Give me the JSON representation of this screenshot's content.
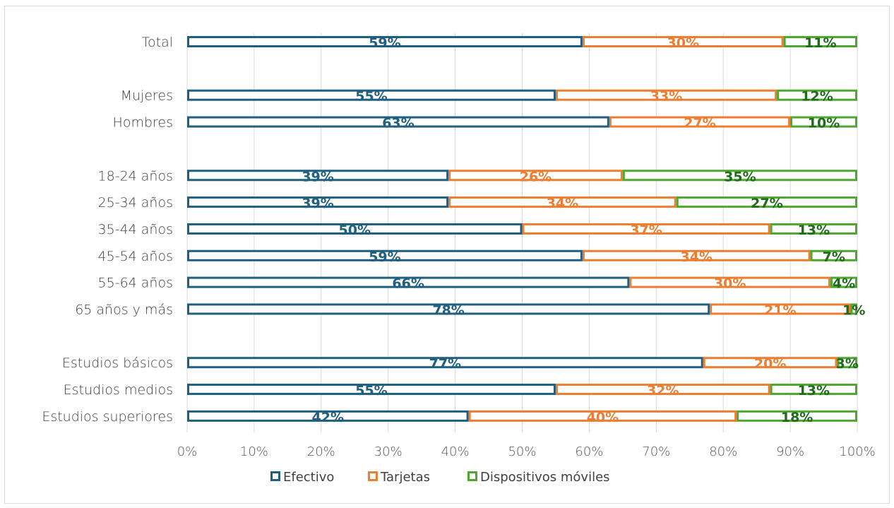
{
  "chart_data": {
    "type": "bar",
    "orientation": "horizontal",
    "stacked": "percent",
    "categories": [
      "Total",
      "",
      "Mujeres",
      "Hombres",
      "",
      "18-24 años",
      "25-34 años",
      "35-44 años",
      "45-54 años",
      "55-64 años",
      "65 años y más",
      "",
      "Estudios básicos",
      "Estudios medios",
      "Estudios superiores"
    ],
    "series": [
      {
        "name": "Efectivo",
        "color": "#1f5f7f",
        "values": [
          59,
          null,
          55,
          63,
          null,
          39,
          39,
          50,
          59,
          66,
          78,
          null,
          77,
          55,
          42
        ]
      },
      {
        "name": "Tarjetas",
        "color": "#ed7d31",
        "values": [
          30,
          null,
          33,
          27,
          null,
          26,
          34,
          37,
          34,
          30,
          21,
          null,
          20,
          32,
          40
        ]
      },
      {
        "name": "Dispositivos móviles",
        "color": "#4ea72e",
        "values": [
          11,
          null,
          12,
          10,
          null,
          35,
          27,
          13,
          7,
          4,
          1,
          null,
          3,
          13,
          18
        ]
      }
    ],
    "data_label_colors": [
      "#1f5f7f",
      "#ed7d31",
      "#1e6b1a"
    ],
    "x_ticks": [
      "0%",
      "10%",
      "20%",
      "30%",
      "40%",
      "50%",
      "60%",
      "70%",
      "80%",
      "90%",
      "100%"
    ],
    "xlim": [
      0,
      100
    ],
    "grid": true,
    "legend": "bottom"
  }
}
